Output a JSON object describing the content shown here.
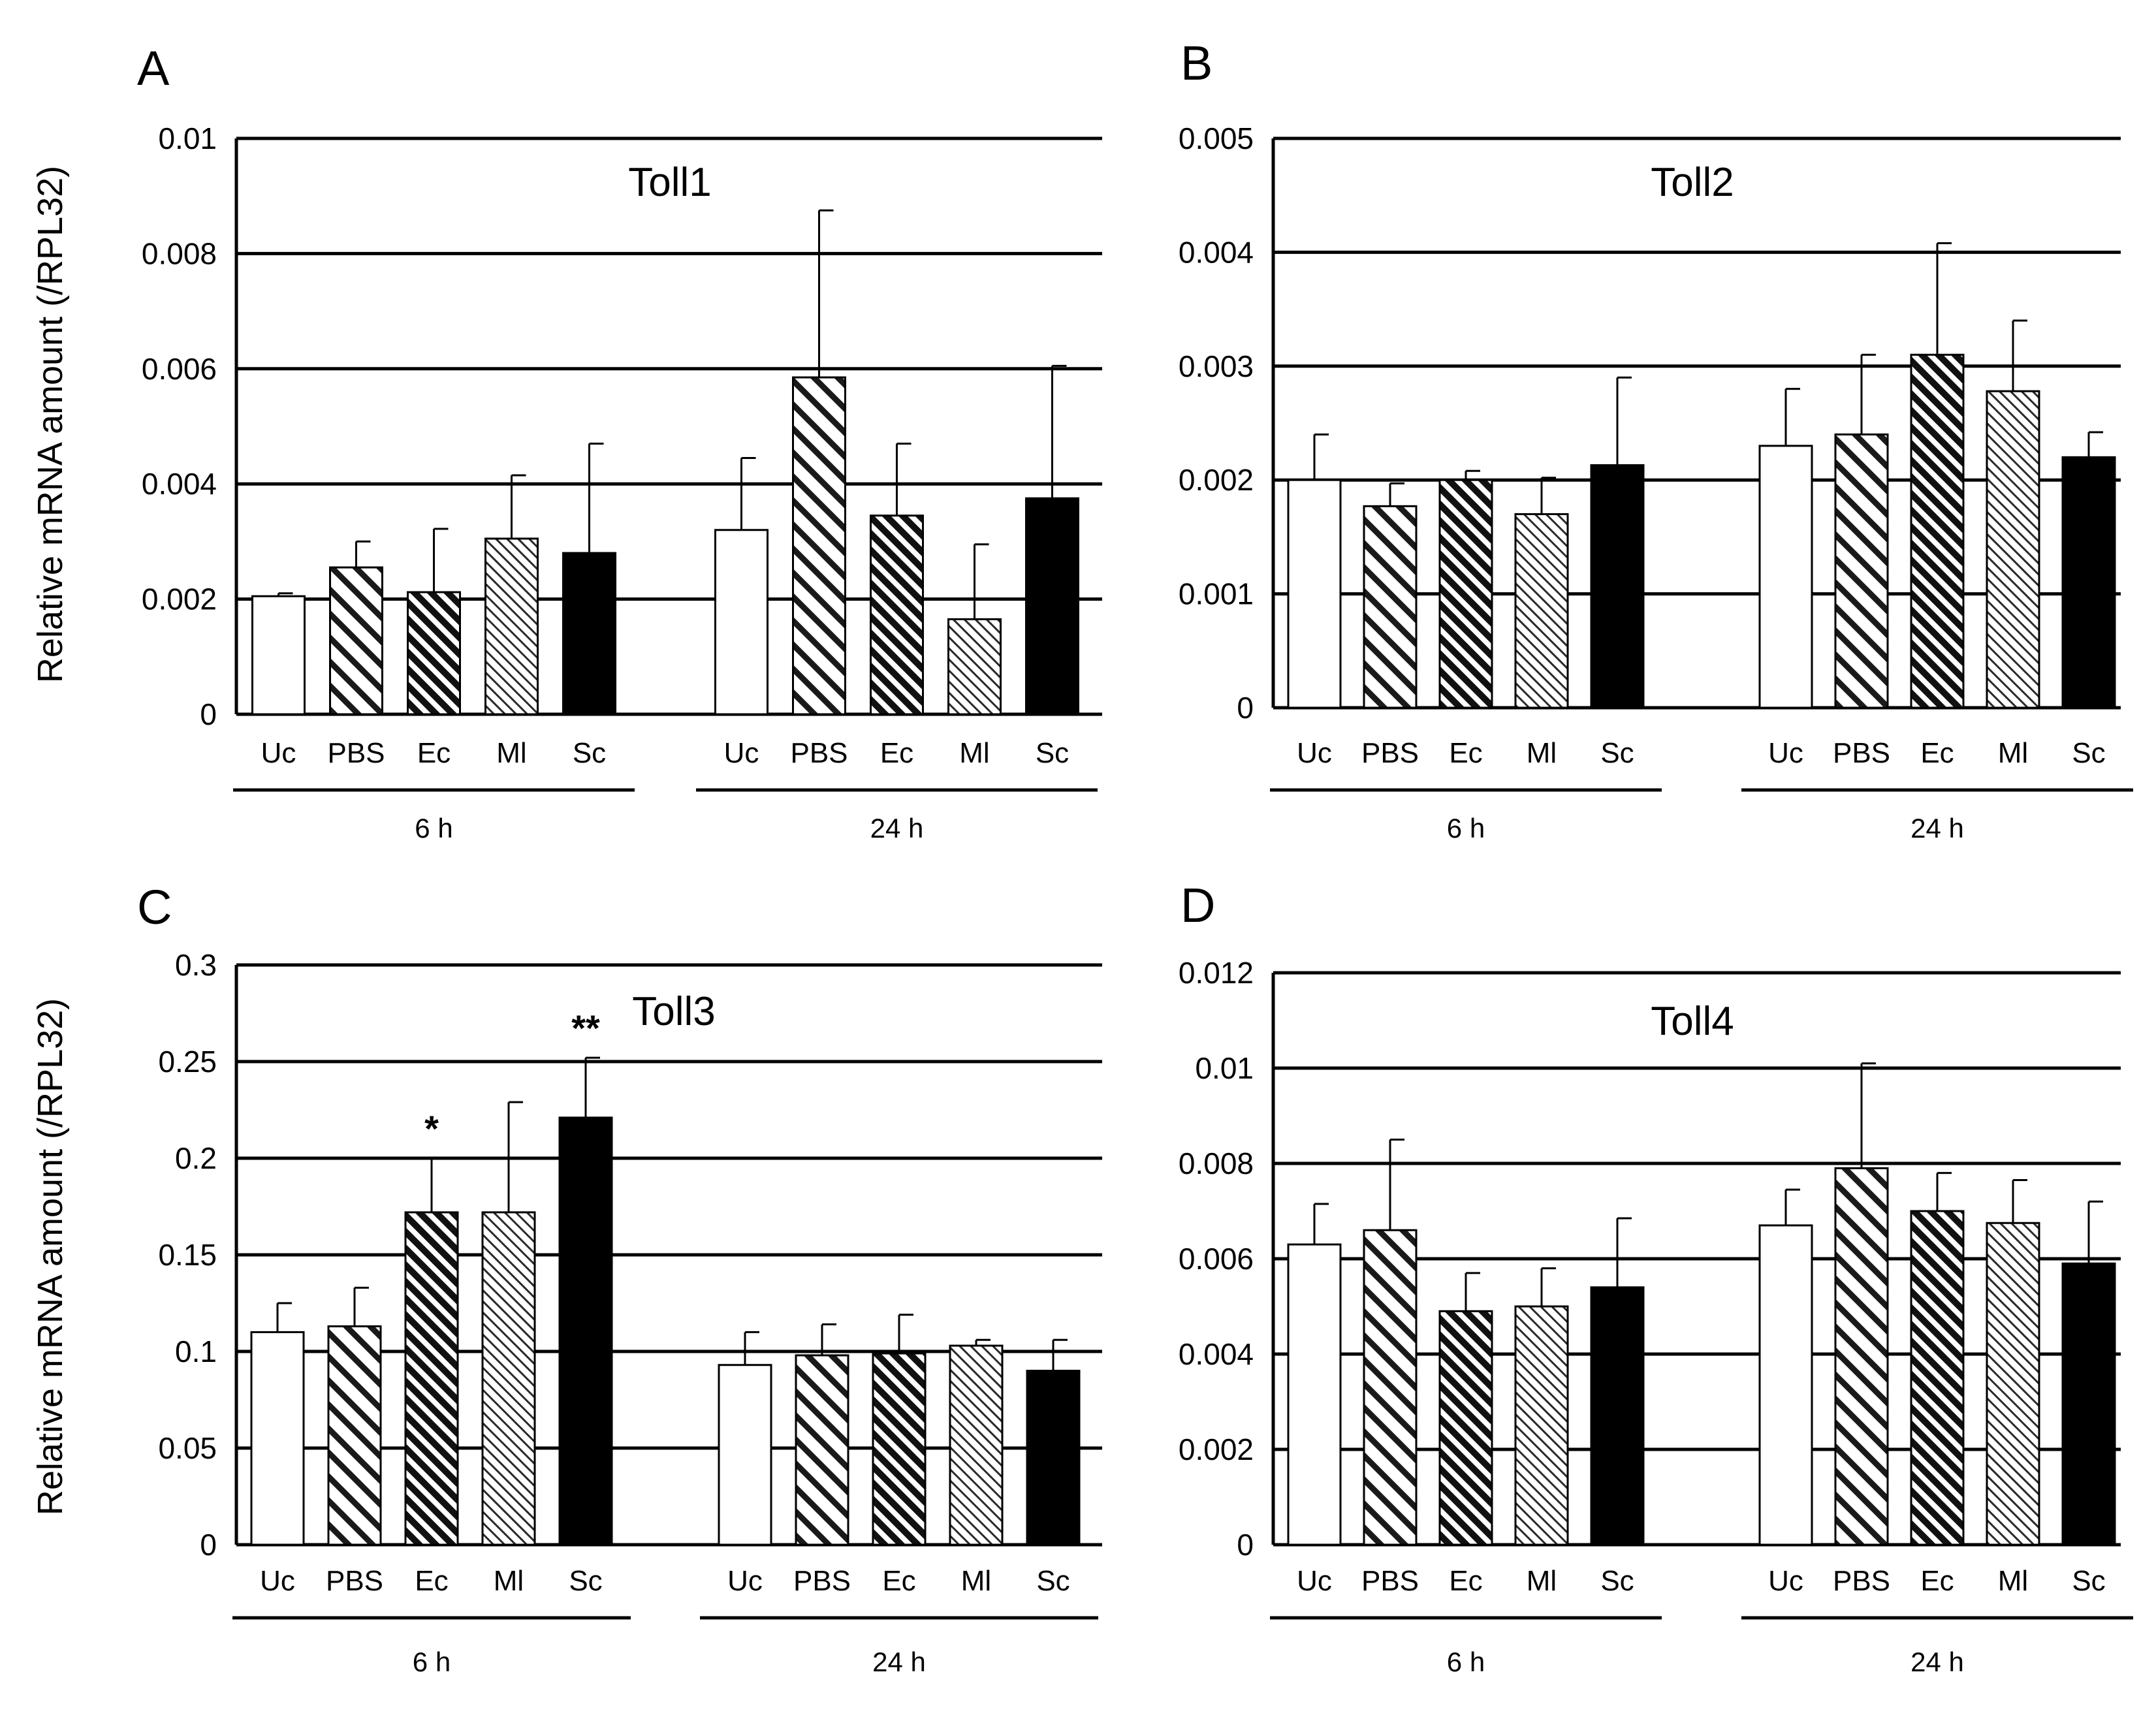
{
  "figure": {
    "y_axis_label": "Relative mRNA amount (/RPL32)",
    "group_labels": [
      "6 h",
      "24 h"
    ],
    "colors": {
      "axis": "#000000",
      "Uc": "#ffffff",
      "Sc": "#000000",
      "hatch_bg": "#ffffff",
      "hatch_line": "#1a1a1a"
    }
  },
  "chart_data": [
    {
      "type": "bar",
      "panel": "A",
      "title": "Toll1",
      "categories": [
        "Uc",
        "PBS",
        "Ec",
        "Ml",
        "Sc",
        "Uc",
        "PBS",
        "Ec",
        "Ml",
        "Sc"
      ],
      "groups": [
        "6 h",
        "24 h"
      ],
      "values": [
        0.00205,
        0.00255,
        0.00212,
        0.00305,
        0.0028,
        0.0032,
        0.00585,
        0.00345,
        0.00165,
        0.00375
      ],
      "errors": [
        5e-05,
        0.00045,
        0.0011,
        0.0011,
        0.0019,
        0.00125,
        0.0029,
        0.00125,
        0.0013,
        0.0023
      ],
      "significance": [
        "",
        "",
        "",
        "",
        "",
        "",
        "",
        "",
        "",
        ""
      ],
      "ylim": [
        0,
        0.01
      ],
      "yticks": [
        "0",
        "0.002",
        "0.004",
        "0.006",
        "0.008",
        "0.01"
      ],
      "xlabel": "",
      "ylabel": "Relative mRNA amount (/RPL32)"
    },
    {
      "type": "bar",
      "panel": "B",
      "title": "Toll2",
      "categories": [
        "Uc",
        "PBS",
        "Ec",
        "Ml",
        "Sc",
        "Uc",
        "PBS",
        "Ec",
        "Ml",
        "Sc"
      ],
      "groups": [
        "6 h",
        "24 h"
      ],
      "values": [
        0.002,
        0.00177,
        0.002,
        0.0017,
        0.00213,
        0.0023,
        0.0024,
        0.0031,
        0.00278,
        0.0022
      ],
      "errors": [
        0.0004,
        0.0002,
        8e-05,
        0.00032,
        0.00077,
        0.0005,
        0.0007,
        0.00098,
        0.00062,
        0.00022
      ],
      "significance": [
        "",
        "",
        "",
        "",
        "",
        "",
        "",
        "",
        "",
        ""
      ],
      "ylim": [
        0,
        0.005
      ],
      "yticks": [
        "0",
        "0.001",
        "0.002",
        "0.003",
        "0.004",
        "0.005"
      ],
      "xlabel": "",
      "ylabel": ""
    },
    {
      "type": "bar",
      "panel": "C",
      "title": "Toll3",
      "categories": [
        "Uc",
        "PBS",
        "Ec",
        "Ml",
        "Sc",
        "Uc",
        "PBS",
        "Ec",
        "Ml",
        "Sc"
      ],
      "groups": [
        "6 h",
        "24 h"
      ],
      "values": [
        0.11,
        0.113,
        0.172,
        0.172,
        0.221,
        0.093,
        0.098,
        0.099,
        0.103,
        0.09
      ],
      "errors": [
        0.015,
        0.02,
        0.028,
        0.057,
        0.031,
        0.017,
        0.016,
        0.02,
        0.003,
        0.016
      ],
      "significance": [
        "",
        "",
        "*",
        "",
        "**",
        "",
        "",
        "",
        "",
        ""
      ],
      "ylim": [
        0,
        0.3
      ],
      "yticks": [
        "0",
        "0.05",
        "0.1",
        "0.15",
        "0.2",
        "0.25",
        "0.3"
      ],
      "xlabel": "",
      "ylabel": "Relative mRNA amount (/RPL32)"
    },
    {
      "type": "bar",
      "panel": "D",
      "title": "Toll4",
      "categories": [
        "Uc",
        "PBS",
        "Ec",
        "Ml",
        "Sc",
        "Uc",
        "PBS",
        "Ec",
        "Ml",
        "Sc"
      ],
      "groups": [
        "6 h",
        "24 h"
      ],
      "values": [
        0.0063,
        0.0066,
        0.0049,
        0.005,
        0.0054,
        0.0067,
        0.0079,
        0.007,
        0.00675,
        0.0059
      ],
      "errors": [
        0.00085,
        0.0019,
        0.0008,
        0.0008,
        0.00145,
        0.00075,
        0.0022,
        0.0008,
        0.0009,
        0.0013
      ],
      "significance": [
        "",
        "",
        "",
        "",
        "",
        "",
        "",
        "",
        "",
        ""
      ],
      "ylim": [
        0,
        0.012
      ],
      "yticks": [
        "0",
        "0.002",
        "0.004",
        "0.006",
        "0.008",
        "0.01",
        "0.012"
      ],
      "xlabel": "",
      "ylabel": ""
    }
  ]
}
